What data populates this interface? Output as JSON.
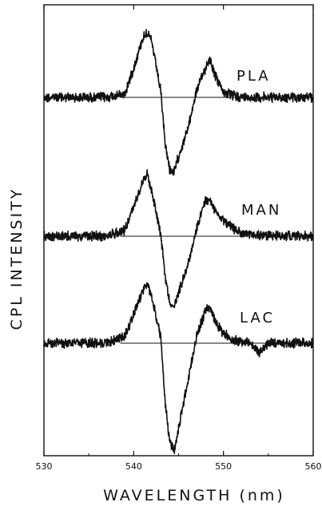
{
  "chart_data": {
    "type": "line",
    "xlabel": "WAVELENGTH (nm)",
    "ylabel": "CPL INTENSITY",
    "xlim": [
      530,
      560
    ],
    "xticks": [
      530,
      540,
      550,
      560
    ],
    "grid": false,
    "line_color": "#111111",
    "series": [
      {
        "name": "PLA",
        "points": [
          [
            530,
            0
          ],
          [
            537,
            0
          ],
          [
            539,
            0.05
          ],
          [
            540,
            0.45
          ],
          [
            541,
            0.9
          ],
          [
            541.5,
            1.0
          ],
          [
            542,
            0.85
          ],
          [
            543,
            0.1
          ],
          [
            543.5,
            -0.7
          ],
          [
            544,
            -1.1
          ],
          [
            544.5,
            -1.15
          ],
          [
            545,
            -0.9
          ],
          [
            546,
            -0.5
          ],
          [
            547,
            0.1
          ],
          [
            548,
            0.45
          ],
          [
            548.5,
            0.6
          ],
          [
            549,
            0.35
          ],
          [
            550,
            0.08
          ],
          [
            551,
            0.03
          ],
          [
            552,
            0
          ],
          [
            560,
            0
          ]
        ]
      },
      {
        "name": "MAN",
        "points": [
          [
            530,
            0
          ],
          [
            537,
            0
          ],
          [
            539,
            0.1
          ],
          [
            540,
            0.45
          ],
          [
            541,
            0.85
          ],
          [
            541.5,
            0.95
          ],
          [
            542,
            0.7
          ],
          [
            543,
            0.05
          ],
          [
            543.5,
            -0.6
          ],
          [
            544,
            -1.0
          ],
          [
            544.5,
            -1.1
          ],
          [
            545,
            -0.85
          ],
          [
            546,
            -0.45
          ],
          [
            547,
            0.1
          ],
          [
            548,
            0.55
          ],
          [
            548.5,
            0.55
          ],
          [
            549,
            0.4
          ],
          [
            550,
            0.25
          ],
          [
            551,
            0.12
          ],
          [
            552,
            0.05
          ],
          [
            553,
            0.02
          ],
          [
            560,
            0
          ]
        ]
      },
      {
        "name": "LAC",
        "points": [
          [
            530,
            0
          ],
          [
            537,
            0
          ],
          [
            539,
            0.1
          ],
          [
            540,
            0.45
          ],
          [
            541,
            0.8
          ],
          [
            541.5,
            0.9
          ],
          [
            542,
            0.7
          ],
          [
            543,
            0.1
          ],
          [
            543.5,
            -0.9
          ],
          [
            544,
            -1.5
          ],
          [
            544.5,
            -1.65
          ],
          [
            545,
            -1.3
          ],
          [
            546,
            -0.6
          ],
          [
            547,
            0.1
          ],
          [
            548,
            0.5
          ],
          [
            548.5,
            0.55
          ],
          [
            549,
            0.35
          ],
          [
            550,
            0.15
          ],
          [
            551,
            0.05
          ],
          [
            553,
            0
          ],
          [
            554,
            -0.15
          ],
          [
            555,
            0
          ],
          [
            560,
            0
          ]
        ]
      }
    ]
  }
}
